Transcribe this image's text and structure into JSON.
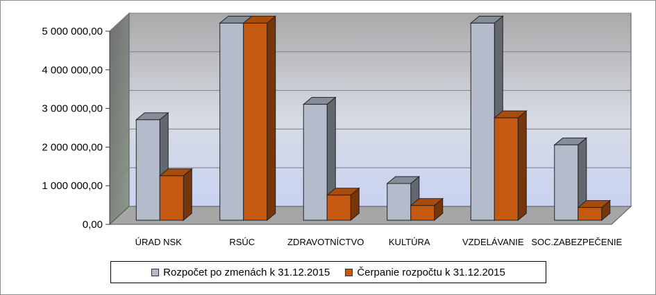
{
  "chart_data": {
    "type": "bar",
    "categories": [
      "ÚRAD NSK",
      "RSÚC",
      "ZDRAVOTNÍCTVO",
      "KULTÚRA",
      "VZDELÁVANIE",
      "SOC.ZABEZPEČENIE"
    ],
    "series": [
      {
        "name": "Rozpočet po zmenách k 31.12.2015",
        "color": "#b4bccb",
        "values": [
          2600000,
          5100000,
          3000000,
          950000,
          5100000,
          1950000
        ]
      },
      {
        "name": "Čerpanie rozpočtu k 31.12.2015",
        "color": "#c65911",
        "values": [
          1150000,
          5100000,
          650000,
          380000,
          2650000,
          330000
        ]
      }
    ],
    "yticks": [
      "0,00",
      "1 000 000,00",
      "2 000 000,00",
      "3 000 000,00",
      "4 000 000,00",
      "5 000 000,00"
    ],
    "ylim": [
      0,
      5000000
    ],
    "grid": true,
    "legend_position": "bottom",
    "style": "3d-clustered-column"
  }
}
